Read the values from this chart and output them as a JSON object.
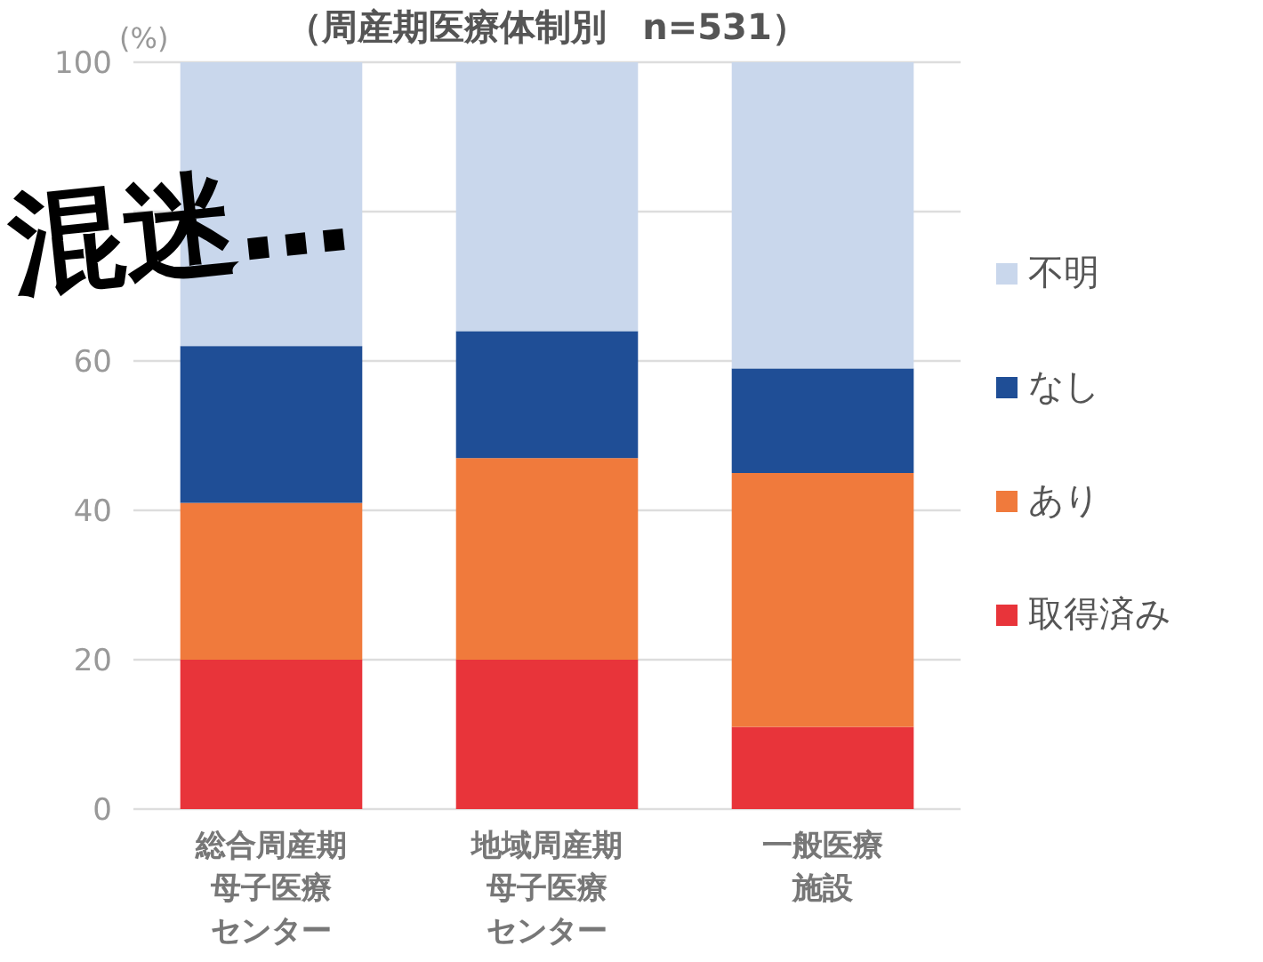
{
  "chart_data": {
    "type": "bar",
    "stacked": true,
    "title": "（周産期医療体制別　n=531）",
    "ylabel": "(%)",
    "categories": [
      "総合周産期母子医療センター",
      "地域周産期母子医療センター",
      "一般医療施設"
    ],
    "series": [
      {
        "name": "取得済み",
        "color": "#e8343a",
        "values": [
          20,
          20,
          11
        ]
      },
      {
        "name": "あり",
        "color": "#f07a3c",
        "values": [
          21,
          27,
          34
        ]
      },
      {
        "name": "なし",
        "color": "#1f4e96",
        "values": [
          21,
          17,
          14
        ]
      },
      {
        "name": "不明",
        "color": "#c9d7ec",
        "values": [
          38,
          36,
          41
        ]
      }
    ],
    "ylim": [
      0,
      100
    ],
    "yticks": [
      0,
      20,
      40,
      60,
      {
        "value": 80,
        "label": null
      },
      100
    ],
    "grid": "y",
    "legend": "right",
    "annotations": [
      "混迷…"
    ]
  }
}
